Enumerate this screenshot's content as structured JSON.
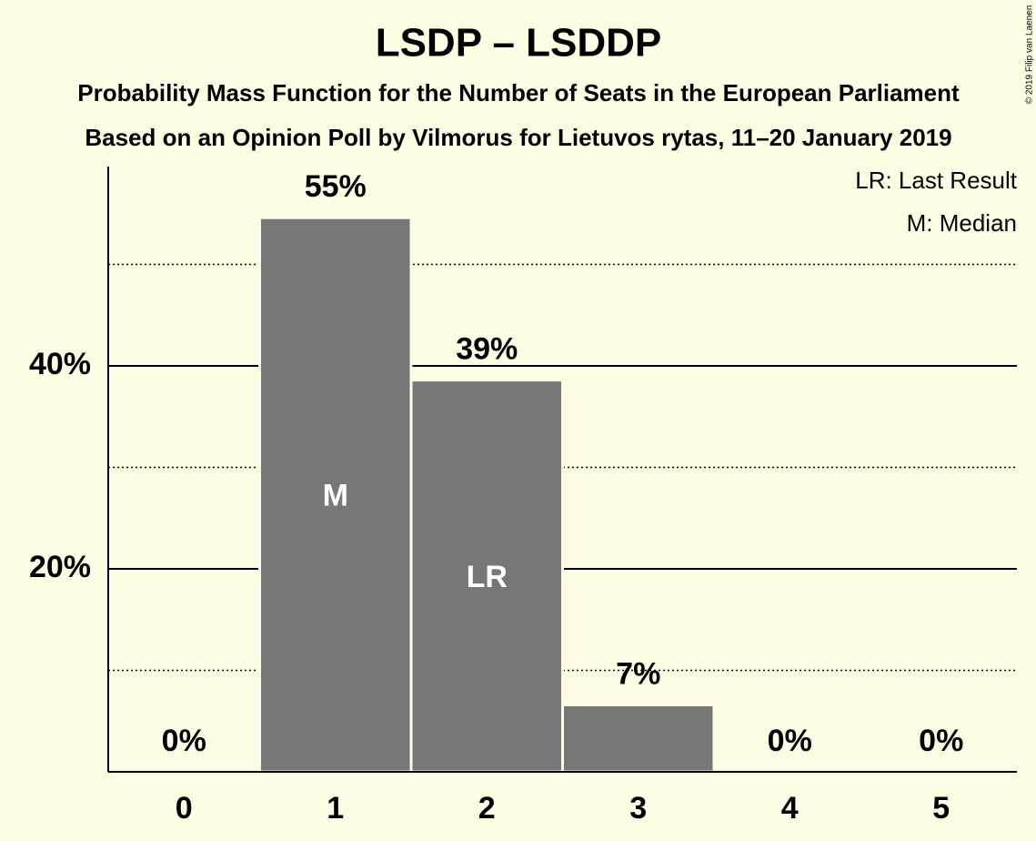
{
  "chart_data": {
    "type": "bar",
    "title": "LSDP – LSDDP",
    "subtitle": "Probability Mass Function for the Number of Seats in the European Parliament",
    "subtitle2": "Based on an Opinion Poll by Vilmorus for Lietuvos rytas, 11–20 January 2019",
    "copyright": "© 2019 Filip van Laenen",
    "categories": [
      "0",
      "1",
      "2",
      "3",
      "4",
      "5"
    ],
    "values": [
      0,
      54.6,
      38.6,
      6.6,
      0,
      0
    ],
    "value_labels": [
      "0%",
      "55%",
      "39%",
      "7%",
      "0%",
      "0%"
    ],
    "color": "#777777",
    "ylim": [
      0,
      60
    ],
    "yticks": [
      {
        "value": 20,
        "label": "20%"
      },
      {
        "value": 40,
        "label": "40%"
      }
    ],
    "minor_yticks": [
      10,
      30,
      50
    ],
    "grid": true,
    "annotations": [
      {
        "category": 1,
        "text": "M"
      },
      {
        "category": 2,
        "text": "LR"
      }
    ],
    "legend": [
      "LR: Last Result",
      "M: Median"
    ]
  }
}
